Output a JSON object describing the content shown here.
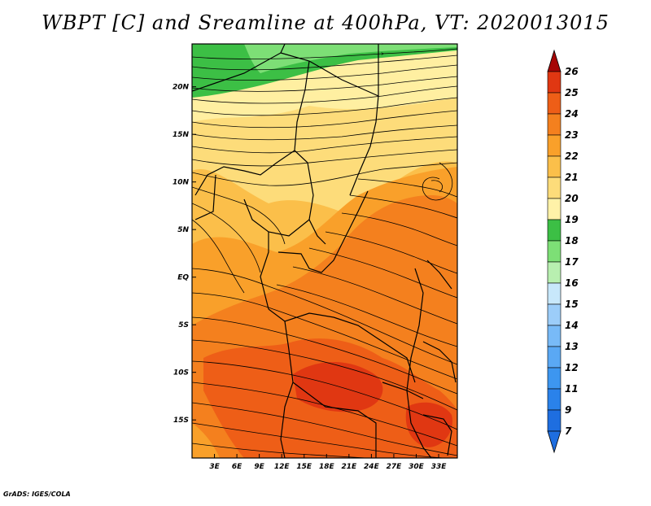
{
  "title": "WBPT [C] and Sreamline at 400hPa, VT: 2020013015",
  "footer": "GrADS: IGES/COLA",
  "map": {
    "lon_range": [
      0,
      35.5
    ],
    "lat_range": [
      -19,
      24.5
    ],
    "lon_ticks": [
      {
        "value": 3,
        "label": "3E"
      },
      {
        "value": 6,
        "label": "6E"
      },
      {
        "value": 9,
        "label": "9E"
      },
      {
        "value": 12,
        "label": "12E"
      },
      {
        "value": 15,
        "label": "15E"
      },
      {
        "value": 18,
        "label": "18E"
      },
      {
        "value": 21,
        "label": "21E"
      },
      {
        "value": 24,
        "label": "24E"
      },
      {
        "value": 27,
        "label": "27E"
      },
      {
        "value": 30,
        "label": "30E"
      },
      {
        "value": 33,
        "label": "33E"
      }
    ],
    "lat_ticks": [
      {
        "value": 20,
        "label": "20N"
      },
      {
        "value": 15,
        "label": "15N"
      },
      {
        "value": 10,
        "label": "10N"
      },
      {
        "value": 5,
        "label": "5N"
      },
      {
        "value": 0,
        "label": "EQ"
      },
      {
        "value": -5,
        "label": "5S"
      },
      {
        "value": -10,
        "label": "10S"
      },
      {
        "value": -15,
        "label": "15S"
      }
    ]
  },
  "colorbar": {
    "levels": [
      {
        "label": "7",
        "color": "#1e6ee0"
      },
      {
        "label": "9",
        "color": "#2a82ea"
      },
      {
        "label": "11",
        "color": "#3d96f0"
      },
      {
        "label": "12",
        "color": "#5aa8f4"
      },
      {
        "label": "13",
        "color": "#78baf7"
      },
      {
        "label": "14",
        "color": "#9ccdf9"
      },
      {
        "label": "15",
        "color": "#c8e8fb"
      },
      {
        "label": "16",
        "color": "#b8efb0"
      },
      {
        "label": "17",
        "color": "#7ddf76"
      },
      {
        "label": "18",
        "color": "#3cbf45"
      },
      {
        "label": "19",
        "color": "#fff2a8"
      },
      {
        "label": "20",
        "color": "#fddc7a"
      },
      {
        "label": "21",
        "color": "#fbbf4a"
      },
      {
        "label": "22",
        "color": "#f9a02a"
      },
      {
        "label": "23",
        "color": "#f4801e"
      },
      {
        "label": "24",
        "color": "#ee5e17"
      },
      {
        "label": "25",
        "color": "#e03712"
      },
      {
        "label": "26",
        "color": "#c80d0d"
      }
    ],
    "top_arrow_color": "#a60606",
    "bottom_arrow_color": "#1e6ee0"
  }
}
